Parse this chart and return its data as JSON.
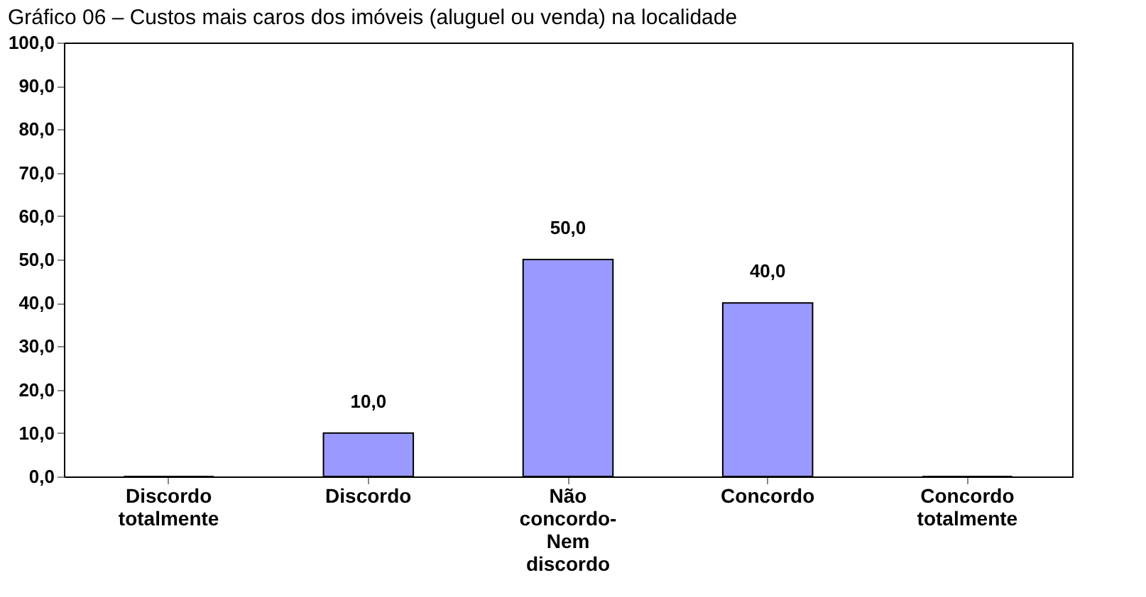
{
  "chart_data": {
    "type": "bar",
    "title": "Gráfico 06 – Custos mais caros dos imóveis (aluguel ou venda) na localidade",
    "categories": [
      "Discordo\ntotalmente",
      "Discordo",
      "Não\nconcordo-\nNem\ndiscordo",
      "Concordo",
      "Concordo\ntotalmente"
    ],
    "values": [
      0,
      10,
      50,
      40,
      0
    ],
    "value_labels": [
      null,
      "10,0",
      "50,0",
      "40,0",
      null
    ],
    "color": "#9999ff",
    "ylim": [
      0,
      100
    ],
    "yticks": [
      {
        "value": 0,
        "label": "0,0"
      },
      {
        "value": 10,
        "label": "10,0"
      },
      {
        "value": 20,
        "label": "20,0"
      },
      {
        "value": 30,
        "label": "30,0"
      },
      {
        "value": 40,
        "label": "40,0"
      },
      {
        "value": 50,
        "label": "50,0"
      },
      {
        "value": 60,
        "label": "60,0"
      },
      {
        "value": 70,
        "label": "70,0"
      },
      {
        "value": 80,
        "label": "80,0"
      },
      {
        "value": 90,
        "label": "90,0"
      },
      {
        "value": 100,
        "label": "100,0"
      }
    ],
    "grid": false
  }
}
